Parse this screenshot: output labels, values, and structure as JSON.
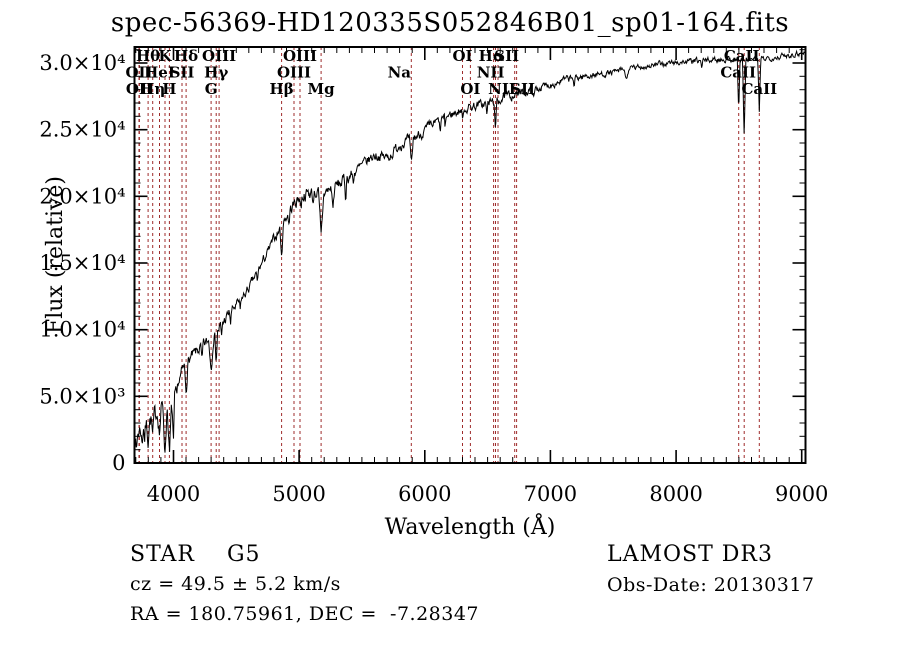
{
  "title": "spec-56369-HD120335S052846B01_sp01-164.fits",
  "footer": {
    "classification": "STAR    G5",
    "velocity": "cz = 49.5 ± 5.2 km/s",
    "coordinates": "RA = 180.75961, DEC =  -7.28347",
    "survey": "LAMOST DR3",
    "obs_date": "Obs-Date: 20130317"
  },
  "chart_data": {
    "type": "line",
    "title": "spec-56369-HD120335S052846B01_sp01-164.fits",
    "xlabel": "Wavelength (Å)",
    "ylabel": "Flux (relative)",
    "xlim": [
      3690,
      9030
    ],
    "ylim": [
      0,
      31200
    ],
    "grid": false,
    "x_ticks": [
      4000,
      5000,
      6000,
      7000,
      8000,
      9000
    ],
    "x_minor_step": 100,
    "y_ticks": [
      {
        "value": 0,
        "label": "0"
      },
      {
        "value": 5000,
        "label": "5.0×10³"
      },
      {
        "value": 10000,
        "label": "1.0×10⁴"
      },
      {
        "value": 15000,
        "label": "1.5×10⁴"
      },
      {
        "value": 20000,
        "label": "2.0×10⁴"
      },
      {
        "value": 25000,
        "label": "2.5×10⁴"
      },
      {
        "value": 30000,
        "label": "3.0×10⁴"
      }
    ],
    "y_minor_step": 1000,
    "line_color": "#000000",
    "marker_color": "#9e2b2b",
    "spectral_lines": [
      {
        "label": "Hθ",
        "wavelength": 3798,
        "row": 1
      },
      {
        "label": "K",
        "wavelength": 3933,
        "row": 1
      },
      {
        "label": "Hδ",
        "wavelength": 4101,
        "row": 1
      },
      {
        "label": "OIII",
        "wavelength": 4363,
        "row": 1
      },
      {
        "label": "OIII",
        "wavelength": 5007,
        "row": 1
      },
      {
        "label": "OI",
        "wavelength": 6300,
        "row": 1
      },
      {
        "label": "Hα",
        "wavelength": 6563,
        "row": 1,
        "dx": -4
      },
      {
        "label": "SII",
        "wavelength": 6716,
        "row": 1,
        "dx": -8
      },
      {
        "label": "CaII",
        "wavelength": 8498,
        "row": 1,
        "dx": 3
      },
      {
        "label": "OII",
        "wavelength": 3726,
        "row": 2
      },
      {
        "label": "HeI",
        "wavelength": 3889,
        "row": 2
      },
      {
        "label": "SII",
        "wavelength": 4068,
        "row": 2
      },
      {
        "label": "Hγ",
        "wavelength": 4340,
        "row": 2
      },
      {
        "label": "OIII",
        "wavelength": 4959,
        "row": 2
      },
      {
        "label": "Na",
        "wavelength": 5893,
        "row": 2,
        "dx": -12
      },
      {
        "label": "NII",
        "wavelength": 6548,
        "row": 2,
        "dx": -3
      },
      {
        "label": "CaII",
        "wavelength": 8542,
        "row": 2,
        "dx": -6
      },
      {
        "label": "OII",
        "wavelength": 3729,
        "row": 3
      },
      {
        "label": "Hη",
        "wavelength": 3835,
        "row": 3
      },
      {
        "label": "H",
        "wavelength": 3968,
        "row": 3
      },
      {
        "label": "G",
        "wavelength": 4300,
        "row": 3
      },
      {
        "label": "Hβ",
        "wavelength": 4861,
        "row": 3
      },
      {
        "label": "Mg",
        "wavelength": 5175,
        "row": 3
      },
      {
        "label": "OI",
        "wavelength": 6363,
        "row": 3
      },
      {
        "label": "NII",
        "wavelength": 6583,
        "row": 3,
        "dx": 4
      },
      {
        "label": "SII",
        "wavelength": 6731,
        "row": 3,
        "dx": 6
      },
      {
        "label": "CaII",
        "wavelength": 8662,
        "row": 3
      }
    ],
    "continuum": [
      [
        3690,
        2500
      ],
      [
        3720,
        2200
      ],
      [
        3750,
        3000
      ],
      [
        3780,
        2800
      ],
      [
        3810,
        3200
      ],
      [
        3840,
        3400
      ],
      [
        3870,
        3800
      ],
      [
        3900,
        4100
      ],
      [
        3930,
        4300
      ],
      [
        3960,
        4200
      ],
      [
        3990,
        4000
      ],
      [
        4010,
        5000
      ],
      [
        4040,
        6000
      ],
      [
        4070,
        6900
      ],
      [
        4100,
        7400
      ],
      [
        4130,
        7800
      ],
      [
        4160,
        8100
      ],
      [
        4200,
        8500
      ],
      [
        4250,
        8900
      ],
      [
        4300,
        9300
      ],
      [
        4350,
        9900
      ],
      [
        4400,
        10600
      ],
      [
        4450,
        11300
      ],
      [
        4500,
        11800
      ],
      [
        4550,
        12400
      ],
      [
        4600,
        13100
      ],
      [
        4650,
        14000
      ],
      [
        4700,
        14900
      ],
      [
        4750,
        15800
      ],
      [
        4800,
        16800
      ],
      [
        4850,
        17600
      ],
      [
        4900,
        18500
      ],
      [
        4950,
        19300
      ],
      [
        5000,
        19900
      ],
      [
        5060,
        20200
      ],
      [
        5120,
        20300
      ],
      [
        5180,
        20200
      ],
      [
        5240,
        20500
      ],
      [
        5300,
        20800
      ],
      [
        5400,
        21500
      ],
      [
        5500,
        22300
      ],
      [
        5600,
        23100
      ],
      [
        5700,
        22900
      ],
      [
        5750,
        23300
      ],
      [
        5800,
        23900
      ],
      [
        5900,
        24300
      ],
      [
        6000,
        24900
      ],
      [
        6100,
        25600
      ],
      [
        6200,
        26100
      ],
      [
        6300,
        26500
      ],
      [
        6400,
        26800
      ],
      [
        6500,
        27000
      ],
      [
        6600,
        27300
      ],
      [
        6700,
        27600
      ],
      [
        6800,
        27800
      ],
      [
        6900,
        28100
      ],
      [
        7000,
        28400
      ],
      [
        7100,
        28700
      ],
      [
        7200,
        28900
      ],
      [
        7350,
        29100
      ],
      [
        7500,
        29300
      ],
      [
        7650,
        29600
      ],
      [
        7800,
        29800
      ],
      [
        7950,
        30000
      ],
      [
        8100,
        30100
      ],
      [
        8250,
        30200
      ],
      [
        8400,
        30300
      ],
      [
        8550,
        30250
      ],
      [
        8700,
        30350
      ],
      [
        8850,
        30500
      ],
      [
        8950,
        30700
      ],
      [
        9030,
        30800
      ]
    ],
    "absorption_features": [
      [
        3705,
        1700,
        10
      ],
      [
        3750,
        1600,
        12
      ],
      [
        3770,
        1100,
        8
      ],
      [
        3798,
        1300,
        12
      ],
      [
        3835,
        1500,
        12
      ],
      [
        3889,
        1800,
        14
      ],
      [
        3933,
        3600,
        16
      ],
      [
        3968,
        3800,
        16
      ],
      [
        4000,
        3200,
        10
      ],
      [
        4026,
        900,
        8
      ],
      [
        4101,
        2100,
        14
      ],
      [
        4227,
        1400,
        9
      ],
      [
        4300,
        2300,
        18
      ],
      [
        4340,
        2100,
        12
      ],
      [
        4383,
        1100,
        8
      ],
      [
        4455,
        900,
        8
      ],
      [
        4531,
        900,
        8
      ],
      [
        4668,
        1000,
        8
      ],
      [
        4861,
        2600,
        13
      ],
      [
        4920,
        1100,
        8
      ],
      [
        5015,
        1000,
        8
      ],
      [
        5110,
        900,
        8
      ],
      [
        5175,
        3300,
        22
      ],
      [
        5270,
        1700,
        12
      ],
      [
        5370,
        1500,
        9
      ],
      [
        5430,
        900,
        8
      ],
      [
        5893,
        2100,
        16
      ],
      [
        6122,
        1200,
        8
      ],
      [
        6162,
        900,
        7
      ],
      [
        6300,
        900,
        8
      ],
      [
        6495,
        1200,
        8
      ],
      [
        6563,
        2700,
        11
      ],
      [
        6867,
        700,
        12
      ],
      [
        7190,
        800,
        9
      ],
      [
        7605,
        800,
        18
      ],
      [
        8205,
        700,
        9
      ],
      [
        8498,
        4100,
        11
      ],
      [
        8542,
        6100,
        13
      ],
      [
        8662,
        4400,
        12
      ]
    ],
    "noise_profile": [
      [
        3995,
        950
      ],
      [
        4450,
        650
      ],
      [
        4900,
        520
      ],
      [
        5450,
        700
      ],
      [
        6050,
        600
      ],
      [
        6700,
        520
      ],
      [
        7300,
        400
      ],
      [
        9040,
        320
      ]
    ],
    "noise_seed": 7,
    "sample_step": 4.5
  }
}
